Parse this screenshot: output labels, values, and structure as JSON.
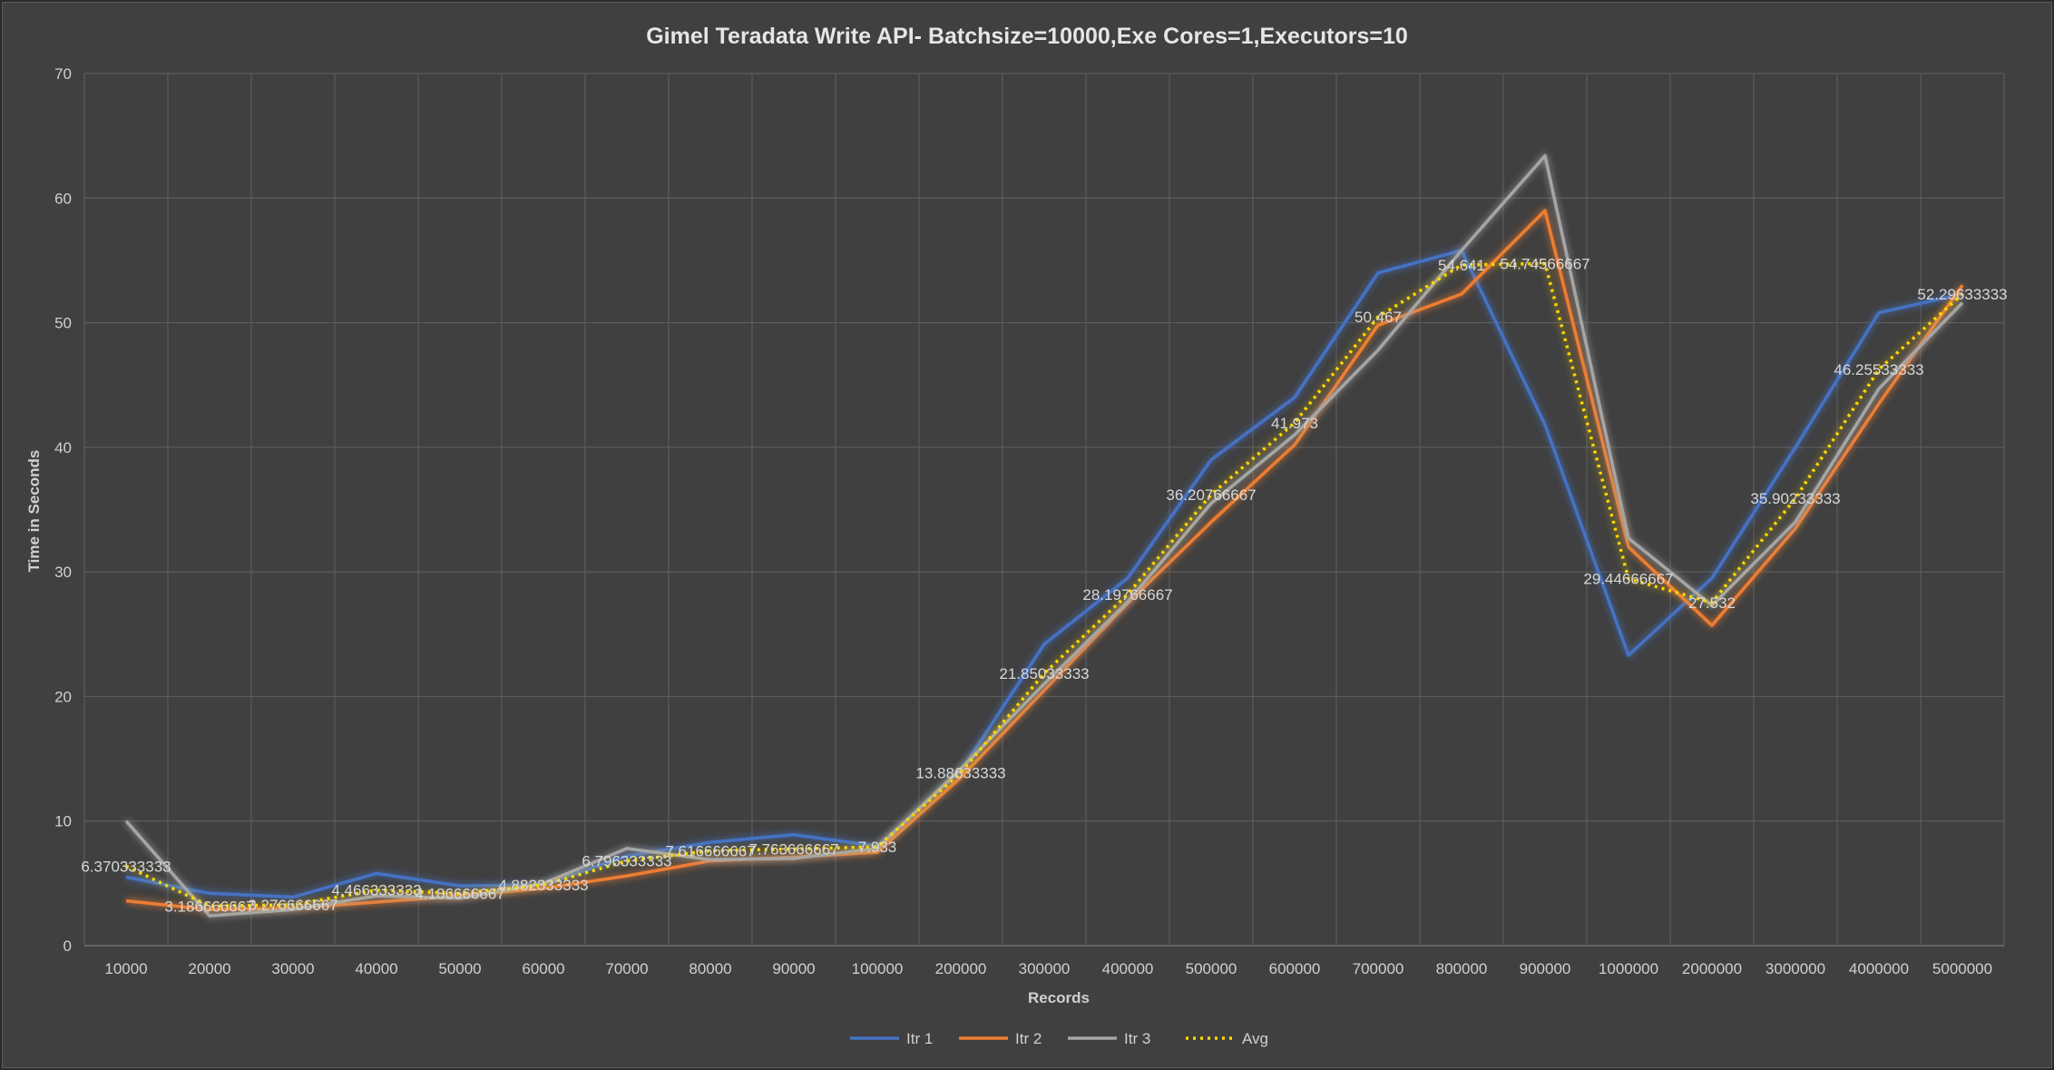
{
  "chart_data": {
    "type": "line",
    "title": "Gimel Teradata Write API- Batchsize=10000,Exe Cores=1,Executors=10",
    "xlabel": "Records",
    "ylabel": "Time in Seconds",
    "ylim": [
      0,
      70
    ],
    "yticks": [
      0,
      10,
      20,
      30,
      40,
      50,
      60,
      70
    ],
    "grid": true,
    "legend_position": "bottom",
    "categories": [
      "10000",
      "20000",
      "30000",
      "40000",
      "50000",
      "60000",
      "70000",
      "80000",
      "90000",
      "100000",
      "200000",
      "300000",
      "400000",
      "500000",
      "600000",
      "700000",
      "800000",
      "900000",
      "1000000",
      "2000000",
      "3000000",
      "4000000",
      "5000000"
    ],
    "series": [
      {
        "name": "Itr 1",
        "color": "#4472c4",
        "style": "solid",
        "values": [
          5.5,
          4.2,
          3.9,
          5.8,
          4.8,
          4.9,
          7.2,
          8.3,
          8.9,
          8.0,
          14.0,
          24.2,
          29.5,
          39.0,
          44.0,
          54.0,
          55.8,
          41.8,
          23.3,
          29.5,
          40.0,
          50.8,
          52.3
        ]
      },
      {
        "name": "Itr 2",
        "color": "#ed7d31",
        "style": "solid",
        "values": [
          3.6,
          2.9,
          3.0,
          3.5,
          4.0,
          4.6,
          5.6,
          6.8,
          7.1,
          7.5,
          13.5,
          20.5,
          27.5,
          34.0,
          40.2,
          49.8,
          52.3,
          59.0,
          32.0,
          25.7,
          33.5,
          43.5,
          53.0
        ]
      },
      {
        "name": "Itr 3",
        "color": "#a5a5a5",
        "style": "solid",
        "values": [
          10.0,
          2.4,
          2.9,
          4.0,
          3.8,
          5.0,
          7.8,
          6.9,
          7.0,
          7.8,
          14.2,
          21.0,
          27.6,
          35.5,
          41.0,
          47.8,
          55.8,
          63.4,
          32.7,
          27.3,
          34.0,
          44.7,
          51.6
        ]
      },
      {
        "name": "Avg",
        "color": "#ffd700",
        "style": "dotted",
        "values": [
          6.370333333,
          3.186666667,
          3.276666667,
          4.466333333,
          4.186666667,
          4.882333333,
          6.796333333,
          7.616666667,
          7.763666667,
          7.933,
          13.88633333,
          21.85033333,
          28.19766667,
          36.20766667,
          41.973,
          50.467,
          54.641,
          54.74566667,
          29.44666667,
          27.532,
          35.90233333,
          46.25533333,
          52.29633333
        ]
      }
    ],
    "data_labels": [
      "6.370333333",
      "3.186666667",
      "3.276666667",
      "4.466333333",
      "4.186666667",
      "4.882333333",
      "6.796333333",
      "7.616666667",
      "7.763666667",
      "7.933",
      "13.88633333",
      "21.85033333",
      "28.19766667",
      "36.20766667",
      "41.973",
      "50.467",
      "54.641",
      "54.74566667",
      "29.44666667",
      "27.532",
      "35.90233333",
      "46.25533333",
      "52.29633333"
    ]
  }
}
